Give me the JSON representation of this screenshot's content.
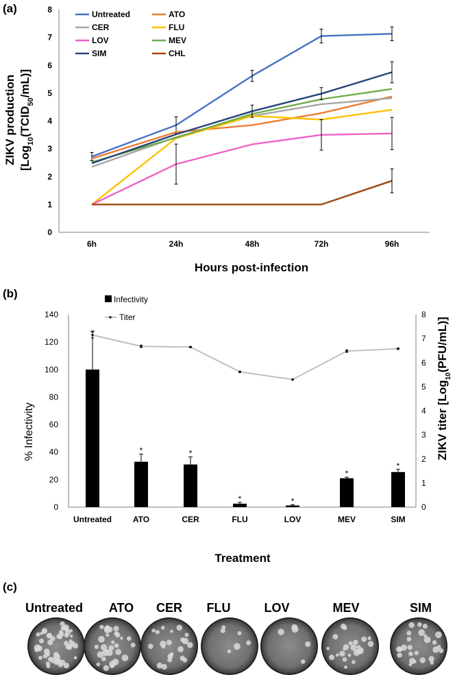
{
  "panels": {
    "a": "(a)",
    "b": "(b)",
    "c": "(c)"
  },
  "chart_data": [
    {
      "id": "a",
      "type": "line",
      "xlabel": "Hours post-infection",
      "ylabel_line1": "ZIKV production",
      "ylabel_line2_prefix": "[Log",
      "ylabel_line2_sub": "10",
      "ylabel_line2_main": "(TCID",
      "ylabel_line2_sub2": "50",
      "ylabel_line2_suffix": "/mL)]",
      "categories": [
        "6h",
        "24h",
        "48h",
        "72h",
        "96h"
      ],
      "ylim": [
        0,
        8
      ],
      "yticks": [
        "0",
        "1",
        "2",
        "3",
        "4",
        "5",
        "6",
        "7",
        "8"
      ],
      "grid": false,
      "legend_position": "top-left",
      "series": [
        {
          "name": "Untreated",
          "color": "#4472c4",
          "values": [
            2.72,
            3.85,
            5.62,
            7.05,
            7.13
          ],
          "errors": [
            0.15,
            0.3,
            0.2,
            0.25,
            0.25
          ]
        },
        {
          "name": "ATO",
          "color": "#ed7d31",
          "values": [
            2.65,
            3.6,
            3.85,
            4.28,
            4.88
          ],
          "errors": [
            0,
            0,
            0,
            0,
            0
          ]
        },
        {
          "name": "CER",
          "color": "#a5a5a5",
          "values": [
            2.35,
            3.42,
            4.18,
            4.6,
            4.82
          ],
          "errors": [
            0,
            0,
            0,
            0,
            0
          ]
        },
        {
          "name": "FLU",
          "color": "#ffc000",
          "values": [
            1.0,
            3.38,
            4.18,
            4.05,
            4.4
          ],
          "errors": [
            0,
            0,
            0,
            0,
            0
          ]
        },
        {
          "name": "LOV",
          "color": "#ee5fc8",
          "values": [
            1.0,
            2.45,
            3.16,
            3.5,
            3.55
          ],
          "errors": [
            0,
            0.72,
            0,
            0.55,
            0.58
          ]
        },
        {
          "name": "MEV",
          "color": "#70ad47",
          "values": [
            2.52,
            3.4,
            4.25,
            4.78,
            5.15
          ],
          "errors": [
            0,
            0,
            0,
            0,
            0
          ]
        },
        {
          "name": "SIM",
          "color": "#264478",
          "values": [
            2.48,
            3.52,
            4.35,
            4.98,
            5.75
          ],
          "errors": [
            0,
            0,
            0.22,
            0.22,
            0.38
          ]
        },
        {
          "name": "CHL",
          "color": "#9e480e",
          "values": [
            1.0,
            1.0,
            1.0,
            1.0,
            1.85
          ],
          "errors": [
            0,
            0,
            0,
            0,
            0.43
          ]
        }
      ]
    },
    {
      "id": "b",
      "type": "bar",
      "xlabel": "Treatment",
      "ylabel": "% Infectivity",
      "y2label_prefix": "ZIKV titer [Log",
      "y2label_sub": "10",
      "y2label_suffix": "(PFU/mL)]",
      "categories": [
        "Untreated",
        "ATO",
        "CER",
        "FLU",
        "LOV",
        "MEV",
        "SIM"
      ],
      "ylim": [
        0,
        140
      ],
      "yticks": [
        "0",
        "20",
        "40",
        "60",
        "80",
        "100",
        "120",
        "140"
      ],
      "y2lim": [
        0,
        8
      ],
      "y2ticks": [
        "0",
        "1",
        "2",
        "3",
        "4",
        "5",
        "6",
        "7",
        "8"
      ],
      "legend_position": "top-center",
      "series": [
        {
          "name": "Infectivity",
          "kind": "bar",
          "color": "#000000",
          "values": [
            100,
            33,
            31,
            2.5,
            1.2,
            21,
            25.5
          ],
          "errors": [
            28,
            5.5,
            5.5,
            1.0,
            0.5,
            0.8,
            2.0
          ],
          "significance": [
            "",
            "*",
            "*",
            "*",
            "*",
            "*",
            "*"
          ]
        },
        {
          "name": "Titer",
          "kind": "line",
          "axis": "right",
          "color": "#bfbfbf",
          "values": [
            7.15,
            6.68,
            6.65,
            5.62,
            5.3,
            6.48,
            6.58
          ],
          "errors": [
            0.12,
            0.05,
            0.03,
            0.03,
            0.02,
            0.05,
            0.03
          ]
        }
      ]
    }
  ],
  "plates": {
    "labels": [
      "Untreated",
      "ATO",
      "CER",
      "FLU",
      "LOV",
      "MEV",
      "SIM"
    ],
    "plaque_density": [
      48,
      30,
      22,
      6,
      5,
      24,
      26
    ]
  }
}
